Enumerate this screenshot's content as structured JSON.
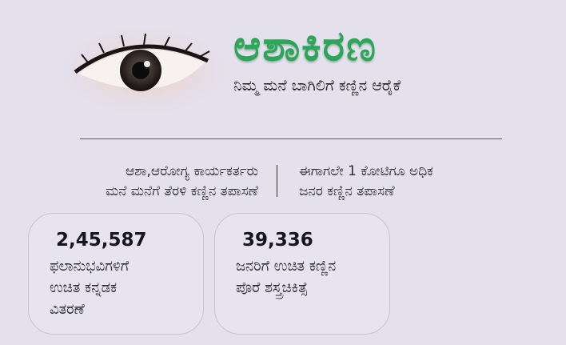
{
  "header": {
    "title": "ಆಶಾಕಿರಣ",
    "subtitle": "ನಿಮ್ಮ ಮನೆ ಬಾಗಿಲಿಗೆ ಕಣ್ಣಿನ ಆರೈಕೆ",
    "title_color": "#2ea65a"
  },
  "info": {
    "left": [
      "ಆಶಾ,ಆರೋಗ್ಯ ಕಾರ್ಯಕರ್ತರು",
      "ಮನೆ ಮನೆಗೆ ತೆರಳಿ ಕಣ್ಣಿನ ತಪಾಸಣೆ"
    ],
    "right": [
      "ಈಗಾಗಲೇ 1 ಕೋಟಿಗೂ ಅಧಿಕ",
      "ಜನರ ಕಣ್ಣಿನ ತಪಾಸಣೆ"
    ]
  },
  "cards": [
    {
      "number": "2,45,587",
      "lines": [
        "ಫಲಾನುಭವಿಗಳಿಗೆ",
        "ಉಚಿತ ಕನ್ನಡಕ",
        "ವಿತರಣೆ"
      ]
    },
    {
      "number": "39,336",
      "lines": [
        "ಜನರಿಗೆ ಉಚಿತ ಕಣ್ಣಿನ",
        "ಪೊರೆ  ಶಸ್ತ್ರಚಿಕಿತ್ಸೆ"
      ]
    }
  ]
}
